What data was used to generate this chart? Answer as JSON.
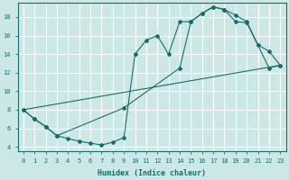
{
  "xlabel": "Humidex (Indice chaleur)",
  "bg_color": "#cce8e6",
  "line_color": "#1a6b6b",
  "grid_color": "#ffffff",
  "xlim": [
    -0.5,
    23.5
  ],
  "ylim": [
    3.5,
    19.5
  ],
  "yticks": [
    4,
    6,
    8,
    10,
    12,
    14,
    16,
    18
  ],
  "xticks": [
    0,
    1,
    2,
    3,
    4,
    5,
    6,
    7,
    8,
    9,
    10,
    11,
    12,
    13,
    14,
    15,
    16,
    17,
    18,
    19,
    20,
    21,
    22,
    23
  ],
  "line1_x": [
    0,
    1,
    2,
    3,
    4,
    5,
    6,
    7,
    8,
    9,
    10,
    11,
    12,
    13,
    14,
    15,
    16,
    17,
    18,
    19,
    20,
    21,
    22,
    23
  ],
  "line1_y": [
    8,
    7,
    6.2,
    5.2,
    4.9,
    4.6,
    4.4,
    4.2,
    4.5,
    5.0,
    14.0,
    15.5,
    16.0,
    14.0,
    17.5,
    17.5,
    18.4,
    19.1,
    18.8,
    18.2,
    17.5,
    15.0,
    14.3,
    12.8
  ],
  "line2_x": [
    0,
    1,
    2,
    3,
    9,
    14,
    15,
    16,
    17,
    18,
    19,
    20,
    22,
    23
  ],
  "line2_y": [
    8,
    7,
    6.2,
    5.2,
    8.2,
    12.5,
    17.5,
    18.4,
    19.1,
    18.8,
    17.5,
    17.4,
    12.5,
    12.8
  ],
  "line3_x": [
    0,
    23
  ],
  "line3_y": [
    8.0,
    12.8
  ]
}
